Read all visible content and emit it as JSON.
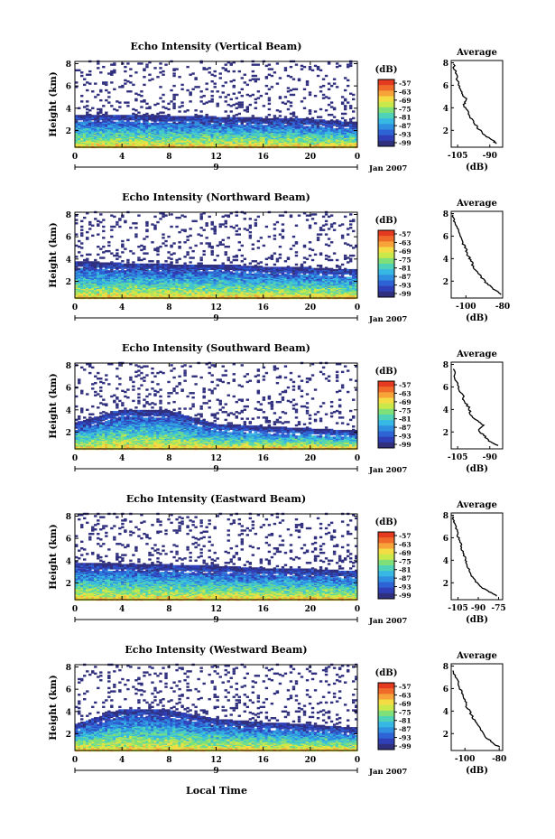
{
  "figure": {
    "xlabel": "Local Time",
    "date_label": "Jan 2007",
    "day_label": "9",
    "ylabel": "Height (km)",
    "colorbar_unit": "(dB)",
    "colorbar_ticks": [
      "-57",
      "-63",
      "-69",
      "-75",
      "-81",
      "-87",
      "-93",
      "-99"
    ],
    "colorbar_colors": [
      "#e33a20",
      "#f06a2a",
      "#f7a33a",
      "#f4dd44",
      "#c9e84a",
      "#7fe07a",
      "#4fd3b8",
      "#37b7e3",
      "#2f8fe0",
      "#2d63d4",
      "#2f3fb8",
      "#30307f"
    ],
    "avg_title": "Average",
    "avg_xlabel": "(dB)",
    "avg_yticks": [
      "2",
      "4",
      "6",
      "8"
    ]
  },
  "chart_data": [
    {
      "type": "heatmap",
      "title": "Echo Intensity (Vertical Beam)",
      "x_ticks": [
        "0",
        "4",
        "8",
        "12",
        "16",
        "20",
        "0"
      ],
      "y_ticks": [
        "2",
        "4",
        "6",
        "8"
      ],
      "xlim": [
        0,
        24
      ],
      "ylim": [
        0.5,
        8.2
      ],
      "layer_top_km": [
        3.4,
        3.4,
        3.3,
        3.2,
        3.1,
        3.0,
        2.7
      ],
      "average_profile": {
        "x_ticks": [
          "-105",
          "-90"
        ],
        "xlim": [
          -108,
          -84
        ],
        "profile": [
          [
            -87,
            0.8
          ],
          [
            -89,
            1.2
          ],
          [
            -93,
            1.6
          ],
          [
            -95,
            2.1
          ],
          [
            -97,
            2.6
          ],
          [
            -99,
            3.1
          ],
          [
            -100,
            3.7
          ],
          [
            -102,
            4.2
          ],
          [
            -101,
            4.7
          ],
          [
            -103,
            5.3
          ],
          [
            -104,
            5.8
          ],
          [
            -105,
            6.4
          ],
          [
            -106,
            7.1
          ],
          [
            -107,
            7.9
          ]
        ]
      }
    },
    {
      "type": "heatmap",
      "title": "Echo Intensity (Northward Beam)",
      "x_ticks": [
        "0",
        "4",
        "8",
        "12",
        "16",
        "20",
        "0"
      ],
      "y_ticks": [
        "2",
        "4",
        "6",
        "8"
      ],
      "xlim": [
        0,
        24
      ],
      "ylim": [
        0.5,
        8.2
      ],
      "layer_top_km": [
        3.8,
        3.6,
        3.5,
        3.5,
        3.3,
        3.2,
        3.0
      ],
      "average_profile": {
        "x_ticks": [
          "-100",
          "-80"
        ],
        "xlim": [
          -108,
          -80
        ],
        "profile": [
          [
            -81,
            0.8
          ],
          [
            -84,
            1.2
          ],
          [
            -88,
            1.7
          ],
          [
            -91,
            2.2
          ],
          [
            -93,
            2.7
          ],
          [
            -96,
            3.2
          ],
          [
            -97,
            3.8
          ],
          [
            -99,
            4.3
          ],
          [
            -100,
            4.9
          ],
          [
            -102,
            5.4
          ],
          [
            -103,
            6.0
          ],
          [
            -104,
            6.6
          ],
          [
            -106,
            7.2
          ],
          [
            -107,
            7.9
          ]
        ]
      }
    },
    {
      "type": "heatmap",
      "title": "Echo Intensity (Southward Beam)",
      "x_ticks": [
        "0",
        "4",
        "8",
        "12",
        "16",
        "20",
        "0"
      ],
      "y_ticks": [
        "2",
        "4",
        "6",
        "8"
      ],
      "xlim": [
        0,
        24
      ],
      "ylim": [
        0.5,
        8.2
      ],
      "layer_top_km": [
        2.8,
        4.0,
        3.9,
        2.7,
        2.5,
        2.3,
        2.1
      ],
      "average_profile": {
        "x_ticks": [
          "-105",
          "-90"
        ],
        "xlim": [
          -108,
          -84
        ],
        "profile": [
          [
            -86,
            0.8
          ],
          [
            -90,
            1.2
          ],
          [
            -93,
            1.7
          ],
          [
            -95,
            2.2
          ],
          [
            -93,
            2.6
          ],
          [
            -97,
            3.1
          ],
          [
            -99,
            3.6
          ],
          [
            -100,
            4.2
          ],
          [
            -102,
            4.8
          ],
          [
            -103,
            5.4
          ],
          [
            -105,
            6.0
          ],
          [
            -106,
            6.8
          ],
          [
            -107,
            7.6
          ]
        ]
      }
    },
    {
      "type": "heatmap",
      "title": "Echo Intensity (Eastward Beam)",
      "x_ticks": [
        "0",
        "4",
        "8",
        "12",
        "16",
        "20",
        "0"
      ],
      "y_ticks": [
        "2",
        "4",
        "6",
        "8"
      ],
      "xlim": [
        0,
        24
      ],
      "ylim": [
        0.5,
        8.2
      ],
      "layer_top_km": [
        3.8,
        3.7,
        3.6,
        3.5,
        3.3,
        3.2,
        3.0
      ],
      "average_profile": {
        "x_ticks": [
          "-105",
          "-90",
          "-75"
        ],
        "xlim": [
          -110,
          -72
        ],
        "profile": [
          [
            -76,
            0.8
          ],
          [
            -82,
            1.2
          ],
          [
            -88,
            1.6
          ],
          [
            -92,
            2.1
          ],
          [
            -95,
            2.6
          ],
          [
            -97,
            3.2
          ],
          [
            -99,
            3.8
          ],
          [
            -100,
            4.3
          ],
          [
            -102,
            4.9
          ],
          [
            -103,
            5.5
          ],
          [
            -105,
            6.1
          ],
          [
            -106,
            6.7
          ],
          [
            -108,
            7.4
          ],
          [
            -109,
            7.9
          ]
        ]
      }
    },
    {
      "type": "heatmap",
      "title": "Echo Intensity (Westward Beam)",
      "x_ticks": [
        "0",
        "4",
        "8",
        "12",
        "16",
        "20",
        "0"
      ],
      "y_ticks": [
        "2",
        "4",
        "6",
        "8"
      ],
      "xlim": [
        0,
        24
      ],
      "ylim": [
        0.5,
        8.2
      ],
      "layer_top_km": [
        2.8,
        4.2,
        4.1,
        3.3,
        3.0,
        2.8,
        2.5
      ],
      "average_profile": {
        "x_ticks": [
          "-100",
          "-80"
        ],
        "xlim": [
          -108,
          -78
        ],
        "profile": [
          [
            -80,
            0.8
          ],
          [
            -84,
            1.2
          ],
          [
            -88,
            1.7
          ],
          [
            -90,
            2.2
          ],
          [
            -93,
            2.8
          ],
          [
            -95,
            3.3
          ],
          [
            -97,
            3.9
          ],
          [
            -99,
            4.4
          ],
          [
            -100,
            5.0
          ],
          [
            -102,
            5.6
          ],
          [
            -103,
            6.2
          ],
          [
            -105,
            6.9
          ],
          [
            -107,
            7.6
          ]
        ]
      }
    }
  ]
}
